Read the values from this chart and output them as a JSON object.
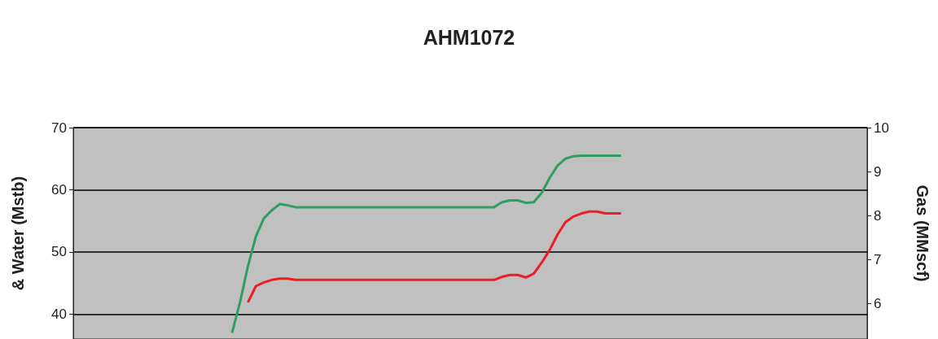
{
  "chart_data": {
    "type": "line",
    "title": "AHM1072",
    "ylabel": "& Water (Mstb)",
    "y2label": "Gas (MMscf)",
    "categories": [
      null,
      null,
      null,
      null,
      null,
      null,
      null,
      null,
      null,
      null,
      null,
      null,
      null,
      null,
      null,
      null,
      null,
      null,
      null,
      null,
      null,
      null,
      null,
      null,
      null,
      null,
      null,
      null,
      null,
      null,
      null,
      null,
      null,
      null,
      null,
      null,
      null,
      null,
      null,
      null,
      null,
      null,
      null,
      null,
      null,
      null,
      null,
      null,
      null,
      null,
      null,
      null,
      null,
      null,
      null,
      null,
      null,
      null,
      null,
      null,
      null,
      null,
      null,
      null,
      null,
      null,
      null,
      null,
      null,
      null,
      null,
      null,
      null,
      null,
      null,
      null,
      null,
      null,
      null,
      null,
      null,
      null,
      null,
      null,
      null,
      null,
      null,
      null,
      null,
      null,
      null,
      null,
      null,
      null,
      null,
      null,
      null,
      null,
      null,
      null,
      null
    ],
    "series": [
      {
        "color": "#2e9e62",
        "values": [
          null,
          null,
          null,
          null,
          null,
          null,
          null,
          null,
          null,
          null,
          null,
          null,
          null,
          null,
          null,
          null,
          null,
          null,
          null,
          null,
          37,
          41.9,
          47.7,
          52.5,
          55.4,
          56.7,
          57.7,
          57.5,
          57.2,
          57.2,
          57.2,
          57.2,
          57.2,
          57.2,
          57.2,
          57.2,
          57.2,
          57.2,
          57.2,
          57.2,
          57.2,
          57.2,
          57.2,
          57.2,
          57.2,
          57.2,
          57.2,
          57.2,
          57.2,
          57.2,
          57.2,
          57.2,
          57.2,
          57.2,
          58.0,
          58.3,
          58.3,
          57.9,
          58.0,
          59.5,
          61.9,
          63.9,
          65.0,
          65.4,
          65.5,
          65.5,
          65.5,
          65.5,
          65.5,
          65.5,
          null,
          null,
          null,
          null,
          null,
          null,
          null,
          null,
          null,
          null,
          null,
          null,
          null,
          null,
          null,
          null,
          null,
          null,
          null,
          null,
          null,
          null,
          null,
          null,
          null,
          null,
          null,
          null,
          null,
          null,
          null
        ]
      },
      {
        "color": "#ee1c25",
        "values": [
          null,
          null,
          null,
          null,
          null,
          null,
          null,
          null,
          null,
          null,
          null,
          null,
          null,
          null,
          null,
          null,
          null,
          null,
          null,
          null,
          null,
          null,
          41.9,
          44.5,
          45.1,
          45.5,
          45.7,
          45.7,
          45.5,
          45.5,
          45.5,
          45.5,
          45.5,
          45.5,
          45.5,
          45.5,
          45.5,
          45.5,
          45.5,
          45.5,
          45.5,
          45.5,
          45.5,
          45.5,
          45.5,
          45.5,
          45.5,
          45.5,
          45.5,
          45.5,
          45.5,
          45.5,
          45.5,
          45.5,
          46.0,
          46.3,
          46.3,
          45.9,
          46.5,
          48.3,
          50.3,
          52.8,
          54.8,
          55.7,
          56.2,
          56.5,
          56.5,
          56.2,
          56.2,
          56.2,
          null,
          null,
          null,
          null,
          null,
          null,
          null,
          null,
          null,
          null,
          null,
          null,
          null,
          null,
          null,
          null,
          null,
          null,
          null,
          null,
          null,
          null,
          null,
          null,
          null,
          null,
          null,
          null,
          null,
          null,
          null
        ]
      }
    ],
    "ylim": [
      36,
      70
    ],
    "yticks": [
      40,
      50,
      60,
      70
    ],
    "y2lim": [
      5.2,
      10
    ],
    "y2ticks": [
      6,
      7,
      8,
      9,
      10
    ],
    "grid": "y",
    "marker": "none",
    "line_style": "solid",
    "tick_labels": "y"
  }
}
